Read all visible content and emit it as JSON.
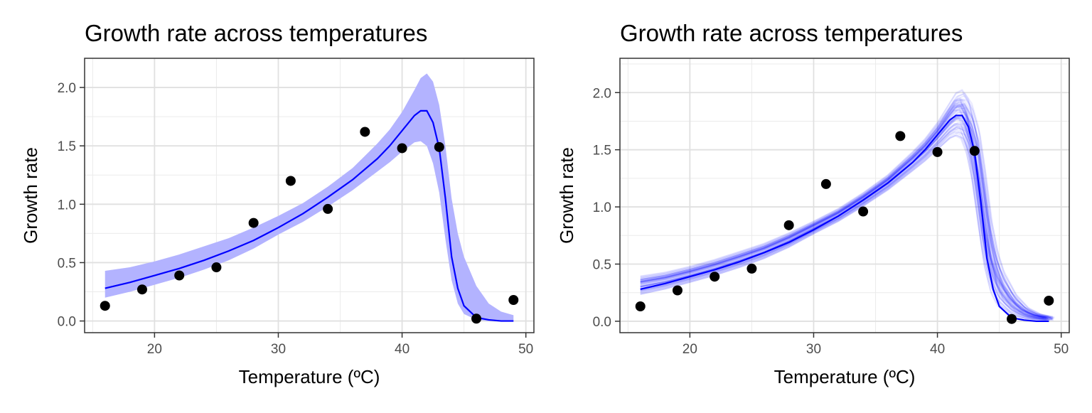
{
  "chart_data": [
    {
      "type": "line",
      "title": "Growth rate across temperatures",
      "xlabel": "Temperature (ºC)",
      "ylabel": "Growth rate",
      "xlim": [
        14.35,
        50.65
      ],
      "ylim": [
        -0.1,
        2.25
      ],
      "xticks": [
        20,
        30,
        40,
        50
      ],
      "yticks": [
        0.0,
        0.5,
        1.0,
        1.5,
        2.0
      ],
      "xtick_labels": [
        "20",
        "30",
        "40",
        "50"
      ],
      "ytick_labels": [
        "0.0",
        "0.5",
        "1.0",
        "1.5",
        "2.0"
      ],
      "grid": true,
      "band_style": "ribbon",
      "colors": {
        "line": "#0000ff",
        "band": "#b3b3ff",
        "points": "#000000"
      },
      "points": {
        "x": [
          16,
          19,
          22,
          25,
          28,
          31,
          34,
          37,
          40,
          43,
          46,
          49
        ],
        "y": [
          0.13,
          0.27,
          0.39,
          0.46,
          0.84,
          1.2,
          0.96,
          1.62,
          1.48,
          1.49,
          0.02,
          0.18
        ]
      },
      "fit": {
        "x": [
          16,
          18,
          20,
          22,
          24,
          26,
          28,
          30,
          32,
          34,
          36,
          38,
          39,
          40,
          41,
          41.5,
          42,
          42.5,
          43,
          43.5,
          44,
          44.5,
          45,
          46,
          47,
          48,
          49
        ],
        "y": [
          0.28,
          0.33,
          0.39,
          0.45,
          0.52,
          0.6,
          0.69,
          0.8,
          0.92,
          1.06,
          1.21,
          1.39,
          1.5,
          1.63,
          1.76,
          1.8,
          1.8,
          1.7,
          1.48,
          1.05,
          0.55,
          0.28,
          0.13,
          0.03,
          0.01,
          0.0,
          0.0
        ]
      },
      "band": {
        "x": [
          16,
          18,
          20,
          22,
          24,
          26,
          28,
          30,
          32,
          34,
          36,
          38,
          39,
          40,
          41,
          41.5,
          42,
          42.5,
          43,
          43.5,
          44,
          44.5,
          45,
          46,
          47,
          48,
          49
        ],
        "lower": [
          0.2,
          0.25,
          0.31,
          0.37,
          0.44,
          0.52,
          0.62,
          0.74,
          0.85,
          0.98,
          1.12,
          1.28,
          1.36,
          1.45,
          1.53,
          1.54,
          1.5,
          1.35,
          1.1,
          0.7,
          0.35,
          0.15,
          0.06,
          0.01,
          0.0,
          0.0,
          0.0
        ],
        "upper": [
          0.43,
          0.46,
          0.51,
          0.57,
          0.64,
          0.71,
          0.8,
          0.9,
          1.01,
          1.15,
          1.31,
          1.52,
          1.64,
          1.79,
          1.98,
          2.08,
          2.12,
          2.05,
          1.85,
          1.5,
          1.05,
          0.75,
          0.55,
          0.3,
          0.15,
          0.08,
          0.05
        ]
      }
    },
    {
      "type": "line",
      "title": "Growth rate across temperatures",
      "xlabel": "Temperature (ºC)",
      "ylabel": "Growth rate",
      "xlim": [
        14.35,
        50.65
      ],
      "ylim": [
        -0.1,
        2.3
      ],
      "xticks": [
        20,
        30,
        40,
        50
      ],
      "yticks": [
        0.0,
        0.5,
        1.0,
        1.5,
        2.0
      ],
      "xtick_labels": [
        "20",
        "30",
        "40",
        "50"
      ],
      "ytick_labels": [
        "0.0",
        "0.5",
        "1.0",
        "1.5",
        "2.0"
      ],
      "grid": true,
      "band_style": "draws",
      "draw_count": 60,
      "colors": {
        "line": "#0000ff",
        "band": "#b3b3ff",
        "points": "#000000"
      },
      "points": {
        "x": [
          16,
          19,
          22,
          25,
          28,
          31,
          34,
          37,
          40,
          43,
          46,
          49
        ],
        "y": [
          0.13,
          0.27,
          0.39,
          0.46,
          0.84,
          1.2,
          0.96,
          1.62,
          1.48,
          1.49,
          0.02,
          0.18
        ]
      },
      "fit": {
        "x": [
          16,
          18,
          20,
          22,
          24,
          26,
          28,
          30,
          32,
          34,
          36,
          38,
          39,
          40,
          41,
          41.5,
          42,
          42.5,
          43,
          43.5,
          44,
          44.5,
          45,
          46,
          47,
          48,
          49
        ],
        "y": [
          0.28,
          0.33,
          0.39,
          0.45,
          0.52,
          0.6,
          0.69,
          0.8,
          0.92,
          1.06,
          1.21,
          1.39,
          1.5,
          1.63,
          1.76,
          1.8,
          1.8,
          1.7,
          1.48,
          1.05,
          0.55,
          0.28,
          0.13,
          0.03,
          0.01,
          0.0,
          0.0
        ]
      },
      "band": {
        "x": [
          16,
          18,
          20,
          22,
          24,
          26,
          28,
          30,
          32,
          34,
          36,
          38,
          39,
          40,
          41,
          41.5,
          42,
          42.5,
          43,
          43.5,
          44,
          44.5,
          45,
          46,
          47,
          48,
          49
        ],
        "lower": [
          0.2,
          0.25,
          0.31,
          0.37,
          0.44,
          0.52,
          0.62,
          0.74,
          0.85,
          0.98,
          1.12,
          1.28,
          1.36,
          1.45,
          1.53,
          1.54,
          1.5,
          1.35,
          1.1,
          0.7,
          0.35,
          0.15,
          0.06,
          0.01,
          0.0,
          0.0,
          0.0
        ],
        "upper": [
          0.43,
          0.46,
          0.51,
          0.57,
          0.64,
          0.71,
          0.8,
          0.9,
          1.01,
          1.15,
          1.31,
          1.52,
          1.64,
          1.79,
          1.98,
          2.08,
          2.12,
          2.05,
          1.85,
          1.5,
          1.05,
          0.75,
          0.55,
          0.3,
          0.15,
          0.08,
          0.05
        ]
      }
    }
  ]
}
